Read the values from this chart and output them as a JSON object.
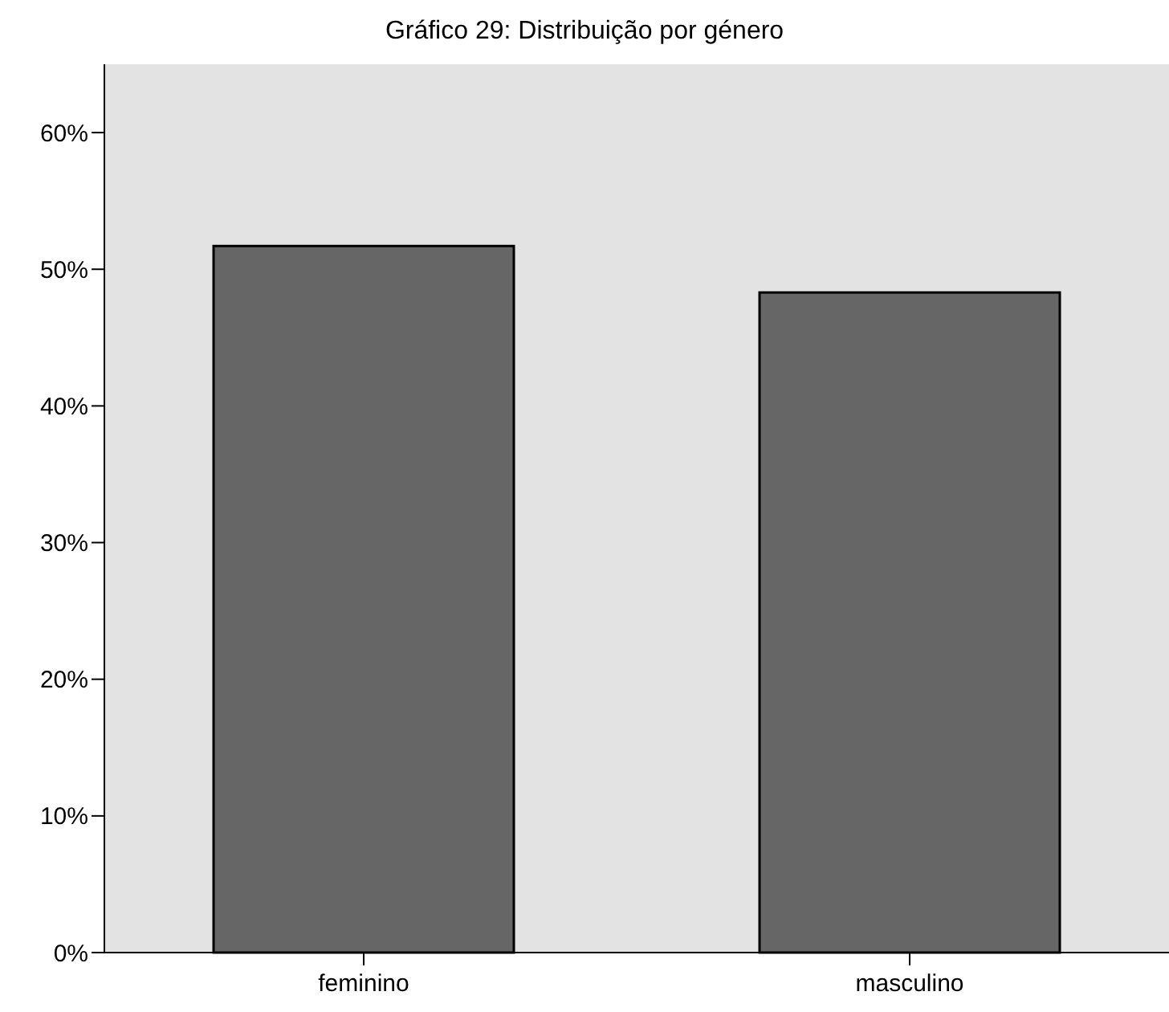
{
  "chart_data": {
    "type": "bar",
    "title": "Gráfico 29: Distribuição por género",
    "categories": [
      "feminino",
      "masculino"
    ],
    "values": [
      51.7,
      48.3
    ],
    "color": "#666666",
    "ylim": [
      0,
      65
    ],
    "yticks": [
      {
        "value": 0,
        "label": "0%"
      },
      {
        "value": 10,
        "label": "10%"
      },
      {
        "value": 20,
        "label": "20%"
      },
      {
        "value": 30,
        "label": "30%"
      },
      {
        "value": 40,
        "label": "40%"
      },
      {
        "value": 50,
        "label": "50%"
      },
      {
        "value": 60,
        "label": "60%"
      }
    ],
    "grid": false
  }
}
